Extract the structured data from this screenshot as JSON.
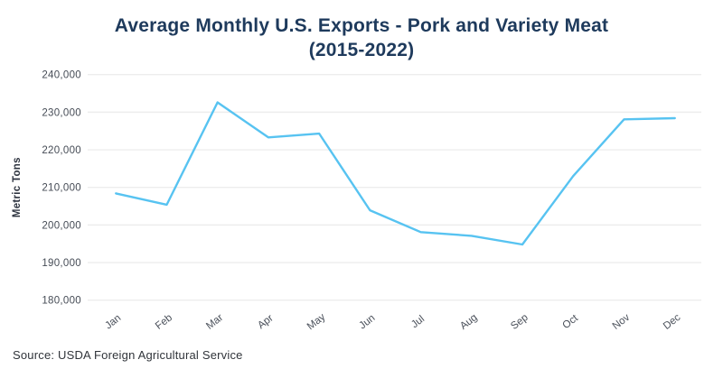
{
  "header": {
    "title_line1": "Average Monthly U.S. Exports - Pork and Variety Meat",
    "title_line2": "(2015-2022)"
  },
  "footer": {
    "source": "Source: USDA Foreign Agricultural Service"
  },
  "chart_data": {
    "type": "line",
    "title": "Average Monthly U.S. Exports - Pork and Variety Meat (2015-2022)",
    "categories": [
      "Jan",
      "Feb",
      "Mar",
      "Apr",
      "May",
      "Jun",
      "Jul",
      "Aug",
      "Sep",
      "Oct",
      "Nov",
      "Dec"
    ],
    "values": [
      208400,
      205400,
      232600,
      223300,
      224300,
      203900,
      198100,
      197100,
      194800,
      213000,
      228100,
      228400
    ],
    "xlabel": "",
    "ylabel": "Metric Tons",
    "ylim": [
      180000,
      240000
    ],
    "ytick_step": 10000,
    "ytick_labels": [
      "180,000",
      "190,000",
      "200,000",
      "210,000",
      "220,000",
      "230,000",
      "240,000"
    ],
    "grid": true,
    "legend_position": "none",
    "colors": {
      "line": "#57c3f1",
      "grid": "#ededed",
      "title": "#1e3a5c",
      "y_tick_text": "#454b55",
      "x_tick_text": "#4a505a",
      "axis_title_text": "#2e3440"
    }
  }
}
